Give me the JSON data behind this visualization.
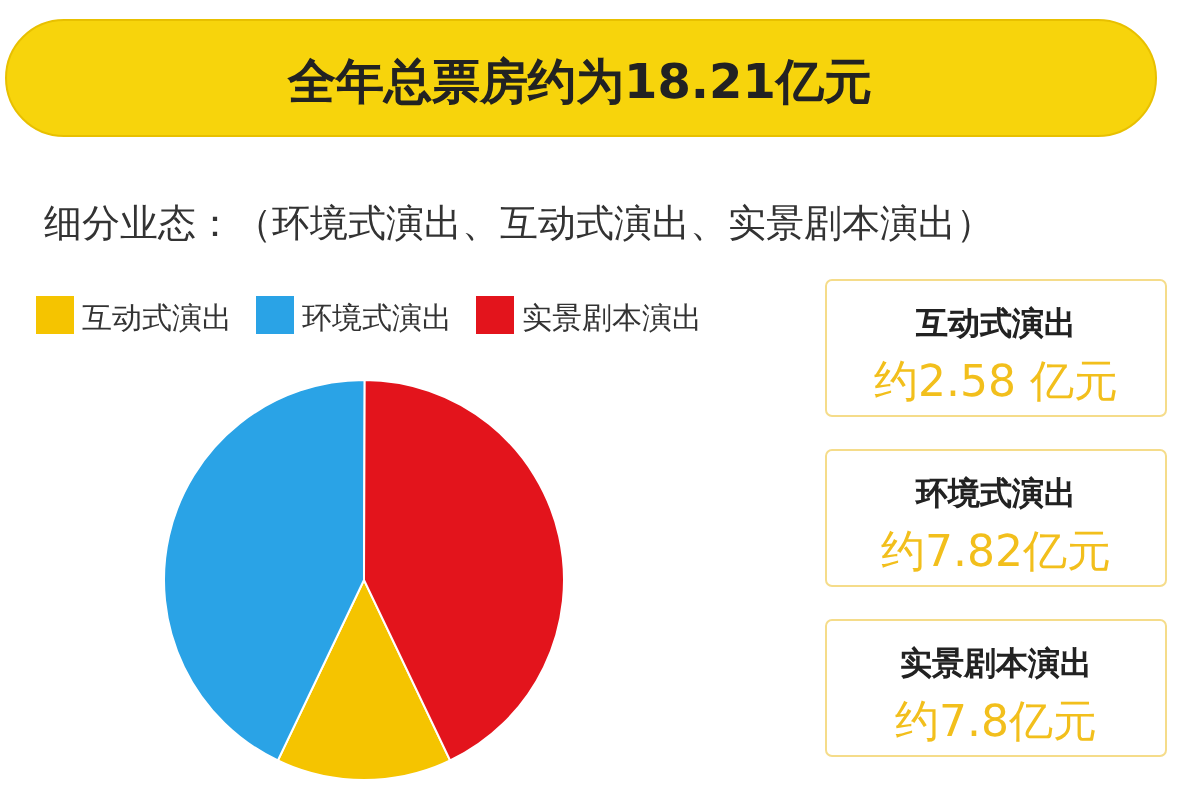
{
  "chart_data": {
    "type": "pie",
    "title": "全年总票房约为18.21亿元",
    "subtitle": "细分业态：（环境式演出、互动式演出、实景剧本演出）",
    "categories": [
      "互动式演出",
      "环境式演出",
      "实景剧本演出"
    ],
    "values": [
      14.17,
      42.97,
      42.86
    ],
    "annotations": [
      "约2.58 亿元",
      "约7.82亿元",
      "约7.8亿元"
    ],
    "colors": [
      "#f5c400",
      "#2aa3e6",
      "#e3141c"
    ],
    "legend": "top left"
  }
}
